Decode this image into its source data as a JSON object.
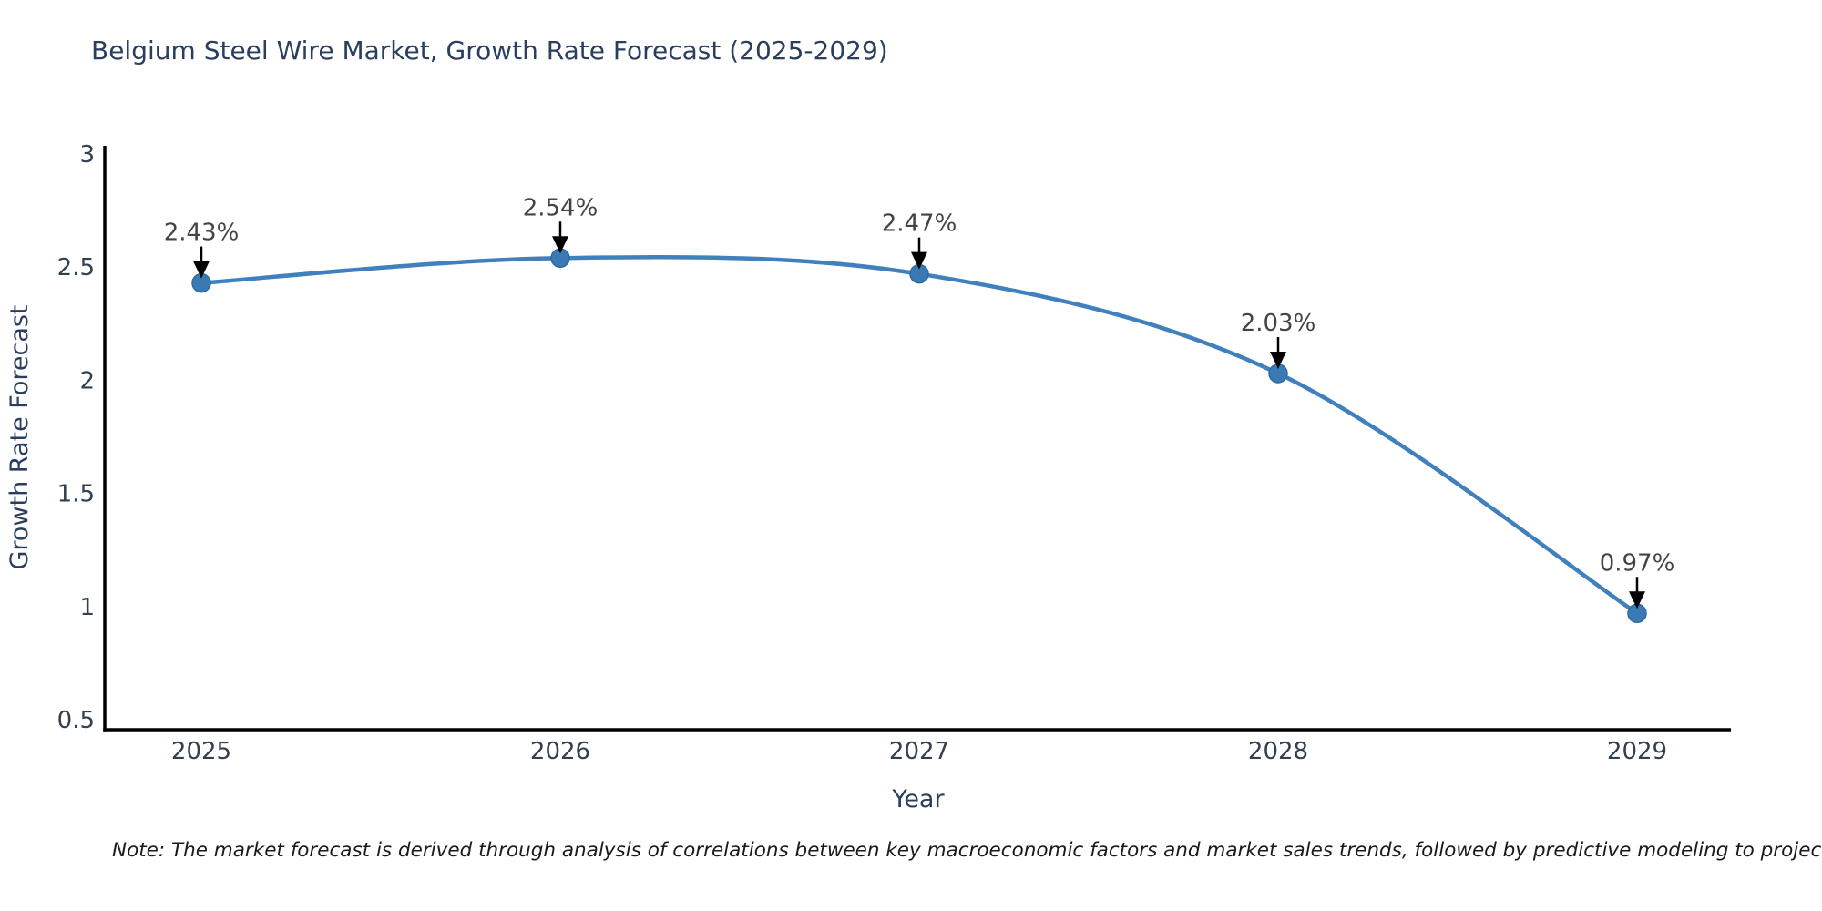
{
  "title": "Belgium Steel Wire Market, Growth Rate Forecast (2025-2029)",
  "note": "Note: The market forecast is derived through analysis of correlations between key macroeconomic factors and market sales trends, followed by predictive modeling to project future sales",
  "chart_data": {
    "type": "line",
    "title": "Belgium Steel Wire Market, Growth Rate Forecast (2025-2029)",
    "xlabel": "Year",
    "ylabel": "Growth Rate Forecast",
    "x_tick_labels": [
      "2025",
      "2026",
      "2027",
      "2028",
      "2029"
    ],
    "x": [
      2025,
      2026,
      2027,
      2028,
      2029
    ],
    "values": [
      2.43,
      2.54,
      2.47,
      2.03,
      0.97
    ],
    "point_labels": [
      "2.43%",
      "2.54%",
      "2.47%",
      "2.03%",
      "0.97%"
    ],
    "ylim": [
      0.5,
      3
    ],
    "yticks": [
      0.5,
      1,
      1.5,
      2,
      2.5,
      3
    ],
    "grid": false,
    "legend": false,
    "line_shape": "spline",
    "colors": {
      "line": "#4080bd",
      "marker_fill": "#3a79b4",
      "marker_edge": "#2f6ba5",
      "axis_line": "#000000",
      "title_text": "#2a3f5f",
      "tick_text": "#33404f",
      "annotation_text": "#444444",
      "arrow": "#000000",
      "background": "#ffffff"
    }
  }
}
